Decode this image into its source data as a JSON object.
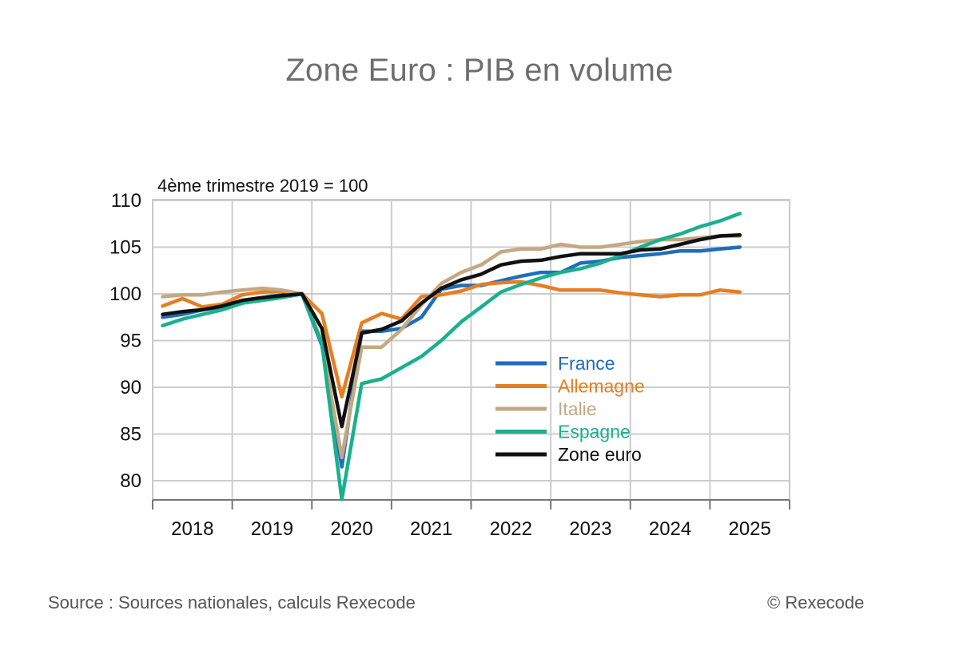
{
  "title": "Zone Euro : PIB en volume",
  "source": "Source : Sources nationales, calculs Rexecode",
  "copyright": "© Rexecode",
  "chart_data": {
    "type": "line",
    "title": "Zone Euro : PIB en volume",
    "ylabel": "4ème trimestre 2019 = 100",
    "xlabel": "",
    "ylim": [
      78,
      111
    ],
    "yticks": [
      80,
      85,
      90,
      95,
      100,
      105,
      110
    ],
    "year_labels": [
      "2018",
      "2019",
      "2020",
      "2021",
      "2022",
      "2023",
      "2024",
      "2025"
    ],
    "x_quarters": [
      "2018T1",
      "2018T2",
      "2018T3",
      "2018T4",
      "2019T1",
      "2019T2",
      "2019T3",
      "2019T4",
      "2020T1",
      "2020T2",
      "2020T3",
      "2020T4",
      "2021T1",
      "2021T2",
      "2021T3",
      "2021T4",
      "2022T1",
      "2022T2",
      "2022T3",
      "2022T4",
      "2023T1",
      "2023T2",
      "2023T3",
      "2023T4",
      "2024T1",
      "2024T2",
      "2024T3",
      "2024T4",
      "2025T1",
      "2025T2"
    ],
    "grid": true,
    "legend_position": "center-right",
    "series": [
      {
        "name": "France",
        "color": "#1f6dbb",
        "values": [
          97.5,
          97.8,
          98.3,
          98.6,
          99.3,
          99.6,
          99.9,
          100.0,
          94.5,
          81.5,
          96.0,
          96.0,
          96.3,
          97.5,
          100.5,
          100.9,
          100.9,
          101.4,
          101.9,
          102.3,
          102.3,
          103.3,
          103.5,
          103.9,
          104.1,
          104.3,
          104.6,
          104.6,
          104.8,
          105.0
        ]
      },
      {
        "name": "Allemagne",
        "color": "#e67e22",
        "values": [
          98.7,
          99.5,
          98.6,
          98.9,
          99.9,
          100.2,
          100.3,
          100.0,
          97.9,
          89.0,
          96.9,
          97.9,
          97.3,
          99.7,
          99.9,
          100.3,
          101.0,
          101.2,
          101.3,
          100.9,
          100.4,
          100.4,
          100.4,
          100.1,
          99.9,
          99.7,
          99.9,
          99.9,
          100.4,
          100.2
        ]
      },
      {
        "name": "Italie",
        "color": "#c4a882",
        "values": [
          99.7,
          99.9,
          99.9,
          100.2,
          100.4,
          100.6,
          100.4,
          100.0,
          94.9,
          82.5,
          94.3,
          94.3,
          96.2,
          98.8,
          101.1,
          102.3,
          103.1,
          104.5,
          104.8,
          104.8,
          105.3,
          105.0,
          105.0,
          105.3,
          105.6,
          105.8,
          105.8,
          106.0,
          106.2,
          106.2
        ]
      },
      {
        "name": "Espagne",
        "color": "#1ab08e",
        "values": [
          96.6,
          97.3,
          97.8,
          98.3,
          99.0,
          99.3,
          99.6,
          100.0,
          94.7,
          78.0,
          90.4,
          90.9,
          92.1,
          93.3,
          95.0,
          97.0,
          98.6,
          100.2,
          101.0,
          101.7,
          102.3,
          102.7,
          103.3,
          104.1,
          105.0,
          105.8,
          106.4,
          107.2,
          107.8,
          108.6
        ]
      },
      {
        "name": "Zone euro",
        "color": "#111111",
        "values": [
          97.8,
          98.1,
          98.3,
          98.7,
          99.3,
          99.6,
          99.8,
          100.0,
          96.3,
          85.8,
          95.8,
          96.2,
          97.1,
          99.0,
          100.6,
          101.5,
          102.1,
          103.1,
          103.5,
          103.6,
          104.0,
          104.3,
          104.3,
          104.3,
          104.7,
          104.8,
          105.3,
          105.8,
          106.2,
          106.3
        ]
      }
    ]
  }
}
